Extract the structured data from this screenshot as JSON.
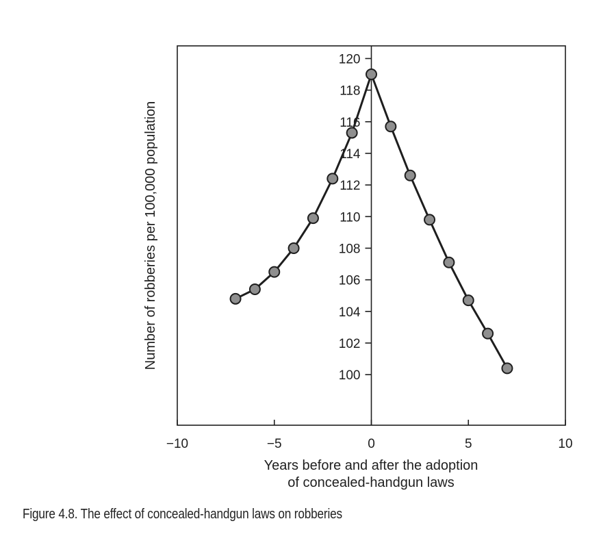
{
  "chart_data": {
    "type": "line",
    "xlabel_line1": "Years before and after the adoption",
    "xlabel_line2": "of concealed-handgun laws",
    "ylabel": "Number of robberies per 100,000 population",
    "xlim": [
      -10,
      10
    ],
    "ylim": [
      96.8,
      120.8
    ],
    "x_ticks": [
      -10,
      -5,
      0,
      5,
      10
    ],
    "x_tick_labels": [
      "−10",
      "−5",
      "0",
      "5",
      "10"
    ],
    "y_ticks": [
      100,
      102,
      104,
      106,
      108,
      110,
      112,
      114,
      116,
      118,
      120
    ],
    "y_tick_labels": [
      "100",
      "102",
      "104",
      "106",
      "108",
      "110",
      "112",
      "114",
      "116",
      "118",
      "120"
    ],
    "grid": false,
    "series": [
      {
        "x": [
          -7,
          -6,
          -5,
          -4,
          -3,
          -2,
          -1,
          0,
          1,
          2,
          3,
          4,
          5,
          6,
          7
        ],
        "y": [
          104.8,
          105.4,
          106.5,
          108.0,
          109.9,
          112.4,
          115.3,
          119.0,
          115.7,
          112.6,
          109.8,
          107.1,
          104.7,
          102.6,
          100.4
        ]
      }
    ],
    "colors": {
      "line": "#1e1e1e",
      "marker_fill": "#8f8f8f",
      "marker_stroke": "#1e1e1e"
    }
  },
  "caption": "Figure 4.8. The effect of concealed-handgun laws on robberies"
}
